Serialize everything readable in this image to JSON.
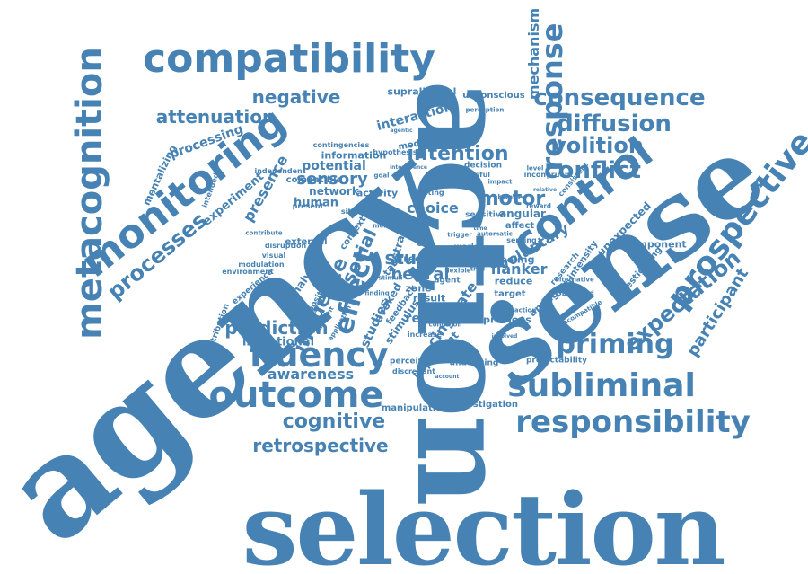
{
  "color": "#4682b4",
  "words": [
    {
      "text": "selection",
      "font": "serif"
    },
    {
      "text": "agency",
      "font": "serif"
    },
    {
      "text": "action",
      "font": "serif"
    },
    {
      "text": "sense",
      "font": "serif"
    },
    {
      "text": "compatibility",
      "font": "sans"
    },
    {
      "text": "metacognition",
      "font": "sans"
    },
    {
      "text": "monitoring",
      "font": "sans"
    },
    {
      "text": "outcome",
      "font": "sans"
    },
    {
      "text": "fluency",
      "font": "sans"
    },
    {
      "text": "subliminal",
      "font": "sans"
    },
    {
      "text": "responsibility",
      "font": "sans"
    },
    {
      "text": "prospective",
      "font": "sans"
    },
    {
      "text": "control",
      "font": "sans"
    },
    {
      "text": "response",
      "font": "sans"
    },
    {
      "text": "consequence",
      "font": "sans"
    },
    {
      "text": "diffusion",
      "font": "sans"
    },
    {
      "text": "volition",
      "font": "sans"
    },
    {
      "text": "conflict",
      "font": "sans"
    },
    {
      "text": "priming",
      "font": "sans"
    },
    {
      "text": "cognitive",
      "font": "sans"
    },
    {
      "text": "retrospective",
      "font": "sans"
    },
    {
      "text": "negative",
      "font": "sans"
    },
    {
      "text": "attenuation",
      "font": "sans"
    },
    {
      "text": "processes",
      "font": "sans"
    },
    {
      "text": "effect",
      "font": "sans"
    },
    {
      "text": "expectation",
      "font": "sans"
    },
    {
      "text": "participant",
      "font": "sans"
    },
    {
      "text": "prediction",
      "font": "sans"
    },
    {
      "text": "awareness",
      "font": "sans"
    },
    {
      "text": "intention",
      "font": "sans"
    },
    {
      "text": "motor",
      "font": "sans"
    },
    {
      "text": "choice",
      "font": "sans"
    },
    {
      "text": "study",
      "font": "sans"
    },
    {
      "text": "neural",
      "font": "sans"
    },
    {
      "text": "cingulate",
      "font": "sans"
    },
    {
      "text": "sensory",
      "font": "sans"
    },
    {
      "text": "potential",
      "font": "sans"
    },
    {
      "text": "influence",
      "font": "sans"
    },
    {
      "text": "social",
      "font": "sans"
    },
    {
      "text": "flanker",
      "font": "sans"
    },
    {
      "text": "voluntary",
      "font": "sans"
    },
    {
      "text": "mechanism",
      "font": "sans"
    },
    {
      "text": "presence",
      "font": "sans"
    },
    {
      "text": "processing",
      "font": "sans"
    },
    {
      "text": "mentalizing",
      "font": "sans"
    },
    {
      "text": "experiment",
      "font": "sans"
    },
    {
      "text": "interaction",
      "font": "sans"
    },
    {
      "text": "supraliminal",
      "font": "sans"
    },
    {
      "text": "unconscious",
      "font": "sans"
    },
    {
      "text": "modulate",
      "font": "sans"
    },
    {
      "text": "intentional",
      "font": "sans"
    },
    {
      "text": "related",
      "font": "sans"
    },
    {
      "text": "studies",
      "font": "sans"
    },
    {
      "text": "evoked",
      "font": "sans"
    },
    {
      "text": "stimulus",
      "font": "sans"
    },
    {
      "text": "feedback",
      "font": "sans"
    },
    {
      "text": "rostral",
      "font": "sans"
    },
    {
      "text": "angular",
      "font": "sans"
    },
    {
      "text": "component",
      "font": "sans"
    },
    {
      "text": "unexpected",
      "font": "sans"
    },
    {
      "text": "previous",
      "font": "sans"
    },
    {
      "text": "integrating",
      "font": "sans"
    },
    {
      "text": "manipulation",
      "font": "sans"
    },
    {
      "text": "investigation",
      "font": "sans"
    },
    {
      "text": "important",
      "font": "sans"
    },
    {
      "text": "perceived",
      "font": "sans"
    },
    {
      "text": "predictability",
      "font": "sans"
    },
    {
      "text": "network",
      "font": "sans"
    },
    {
      "text": "human",
      "font": "sans"
    },
    {
      "text": "activity",
      "font": "sans"
    },
    {
      "text": "information",
      "font": "sans"
    },
    {
      "text": "compatible",
      "font": "sans"
    },
    {
      "text": "contingencies",
      "font": "sans"
    },
    {
      "text": "independent",
      "font": "sans"
    },
    {
      "text": "present",
      "font": "sans"
    },
    {
      "text": "contribution",
      "font": "sans"
    },
    {
      "text": "analysis",
      "font": "sans"
    },
    {
      "text": "external",
      "font": "sans"
    },
    {
      "text": "positive",
      "font": "sans"
    },
    {
      "text": "experience",
      "font": "sans"
    },
    {
      "text": "environment",
      "font": "sans"
    },
    {
      "text": "modulation",
      "font": "sans"
    },
    {
      "text": "context",
      "font": "sans"
    },
    {
      "text": "task",
      "font": "sans"
    },
    {
      "text": "free",
      "font": "sans"
    },
    {
      "text": "zone",
      "font": "sans"
    },
    {
      "text": "result",
      "font": "sans"
    },
    {
      "text": "cue",
      "font": "sans"
    },
    {
      "text": "event",
      "font": "sans"
    },
    {
      "text": "reduce",
      "font": "sans"
    },
    {
      "text": "target",
      "font": "sans"
    },
    {
      "text": "feeling",
      "font": "sans"
    },
    {
      "text": "ambiguity",
      "font": "sans"
    },
    {
      "text": "investigating",
      "font": "sans"
    },
    {
      "text": "intensity",
      "font": "sans"
    },
    {
      "text": "decision",
      "font": "sans"
    },
    {
      "text": "research",
      "font": "sans"
    },
    {
      "text": "affect",
      "font": "sans"
    },
    {
      "text": "world",
      "font": "sans"
    },
    {
      "text": "incongruent",
      "font": "sans"
    },
    {
      "text": "sensitive",
      "font": "sans"
    },
    {
      "text": "situation",
      "font": "sans"
    },
    {
      "text": "prime",
      "font": "sans"
    },
    {
      "text": "agent",
      "font": "sans"
    },
    {
      "text": "increase",
      "font": "sans"
    },
    {
      "text": "underlying",
      "font": "sans"
    },
    {
      "text": "discrepant",
      "font": "sans"
    },
    {
      "text": "observed",
      "font": "sans"
    },
    {
      "text": "rating",
      "font": "sans"
    },
    {
      "text": "serving",
      "font": "sans"
    },
    {
      "text": "change",
      "font": "sans"
    },
    {
      "text": "consistent",
      "font": "sans"
    },
    {
      "text": "succesful",
      "font": "sans"
    },
    {
      "text": "hypothesis",
      "font": "sans"
    },
    {
      "text": "behaviour",
      "font": "sans"
    },
    {
      "text": "disruption",
      "font": "sans"
    },
    {
      "text": "visual",
      "font": "sans"
    },
    {
      "text": "different",
      "font": "sans"
    },
    {
      "text": "contribute",
      "font": "sans"
    },
    {
      "text": "application",
      "font": "sans"
    },
    {
      "text": "intended",
      "font": "sans"
    },
    {
      "text": "mental",
      "font": "sans"
    },
    {
      "text": "finding",
      "font": "sans"
    },
    {
      "text": "alternative",
      "font": "sans"
    },
    {
      "text": "flexible",
      "font": "sans"
    },
    {
      "text": "condition",
      "font": "sans"
    },
    {
      "text": "trial",
      "font": "sans"
    },
    {
      "text": "trigger",
      "font": "sans"
    },
    {
      "text": "incompatible",
      "font": "sans"
    },
    {
      "text": "impact",
      "font": "sans"
    },
    {
      "text": "perception",
      "font": "sans"
    },
    {
      "text": "model",
      "font": "sans"
    },
    {
      "text": "level",
      "font": "sans"
    },
    {
      "text": "error",
      "font": "sans"
    },
    {
      "text": "automatic",
      "font": "sans"
    },
    {
      "text": "stimuli",
      "font": "sans"
    },
    {
      "text": "reaction",
      "font": "sans"
    },
    {
      "text": "interference",
      "font": "sans"
    },
    {
      "text": "goal",
      "font": "sans"
    },
    {
      "text": "involved",
      "font": "sans"
    },
    {
      "text": "relative",
      "font": "sans"
    },
    {
      "text": "reward",
      "font": "sans"
    },
    {
      "text": "time",
      "font": "sans"
    },
    {
      "text": "agentic",
      "font": "sans"
    },
    {
      "text": "account",
      "font": "sans"
    },
    {
      "text": "belief",
      "font": "sans"
    }
  ]
}
